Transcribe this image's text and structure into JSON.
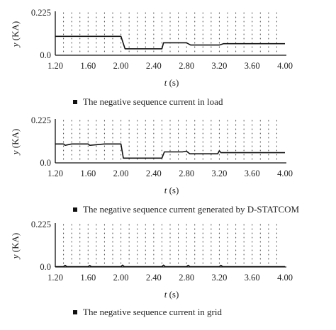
{
  "chart_data": [
    {
      "type": "line",
      "ylabel_var": "y",
      "ylabel_unit": "(KA)",
      "xlabel_var": "t",
      "xlabel_unit": "(s)",
      "xlim": [
        1.2,
        4.0
      ],
      "ylim": [
        0,
        0.225
      ],
      "xticks": [
        "1.20",
        "1.60",
        "2.00",
        "2.40",
        "2.80",
        "3.20",
        "3.60",
        "4.00"
      ],
      "yticks": [
        "0.0",
        "0.225"
      ],
      "grid": "dotted",
      "legend_position": "bottom",
      "series": [
        {
          "name": "The negative sequence current in load",
          "x": [
            1.2,
            1.4,
            1.6,
            1.8,
            2.0,
            2.05,
            2.1,
            2.3,
            2.5,
            2.52,
            2.56,
            2.7,
            2.8,
            2.85,
            3.0,
            3.2,
            3.25,
            3.5,
            3.8,
            4.0
          ],
          "y": [
            0.1,
            0.1,
            0.1,
            0.1,
            0.1,
            0.034,
            0.034,
            0.034,
            0.034,
            0.066,
            0.066,
            0.066,
            0.066,
            0.054,
            0.054,
            0.054,
            0.061,
            0.061,
            0.061,
            0.061
          ]
        }
      ]
    },
    {
      "type": "line",
      "ylabel_var": "y",
      "ylabel_unit": "(KA)",
      "xlabel_var": "t",
      "xlabel_unit": "(s)",
      "xlim": [
        1.2,
        4.0
      ],
      "ylim": [
        0,
        0.225
      ],
      "xticks": [
        "1.20",
        "1.60",
        "2.00",
        "2.40",
        "2.80",
        "3.20",
        "3.60",
        "4.00"
      ],
      "yticks": [
        "0.0",
        "0.225"
      ],
      "grid": "dotted",
      "legend_position": "bottom",
      "series": [
        {
          "name": "The negative sequence current generated by D-STATCOM",
          "x": [
            1.2,
            1.3,
            1.32,
            1.4,
            1.6,
            1.62,
            1.8,
            2.0,
            2.03,
            2.1,
            2.3,
            2.5,
            2.53,
            2.6,
            2.75,
            2.8,
            2.84,
            3.0,
            3.18,
            3.2,
            3.22,
            3.5,
            4.0
          ],
          "y": [
            0.1,
            0.1,
            0.093,
            0.1,
            0.1,
            0.093,
            0.1,
            0.1,
            0.025,
            0.025,
            0.025,
            0.025,
            0.058,
            0.058,
            0.058,
            0.062,
            0.048,
            0.048,
            0.048,
            0.064,
            0.054,
            0.054,
            0.054
          ]
        }
      ]
    },
    {
      "type": "line",
      "ylabel_var": "y",
      "ylabel_unit": "(KA)",
      "xlabel_var": "t",
      "xlabel_unit": "(s)",
      "xlim": [
        1.2,
        4.0
      ],
      "ylim": [
        0,
        0.225
      ],
      "xticks": [
        "1.20",
        "1.60",
        "2.00",
        "2.40",
        "2.80",
        "3.20",
        "3.60",
        "4.00"
      ],
      "yticks": [
        "0.0",
        "0.225"
      ],
      "grid": "dotted",
      "legend_position": "bottom",
      "series": [
        {
          "name": "The negative sequence current in grid",
          "x": [
            1.2,
            1.3,
            1.32,
            1.34,
            1.6,
            1.62,
            1.64,
            2.0,
            2.02,
            2.04,
            2.5,
            2.52,
            2.54,
            2.8,
            2.82,
            2.84,
            3.2,
            3.22,
            3.24,
            4.0
          ],
          "y": [
            0.002,
            0.002,
            0.009,
            0.002,
            0.002,
            0.008,
            0.002,
            0.002,
            0.01,
            0.002,
            0.002,
            0.01,
            0.002,
            0.002,
            0.009,
            0.002,
            0.002,
            0.009,
            0.002,
            0.002
          ]
        }
      ]
    }
  ]
}
